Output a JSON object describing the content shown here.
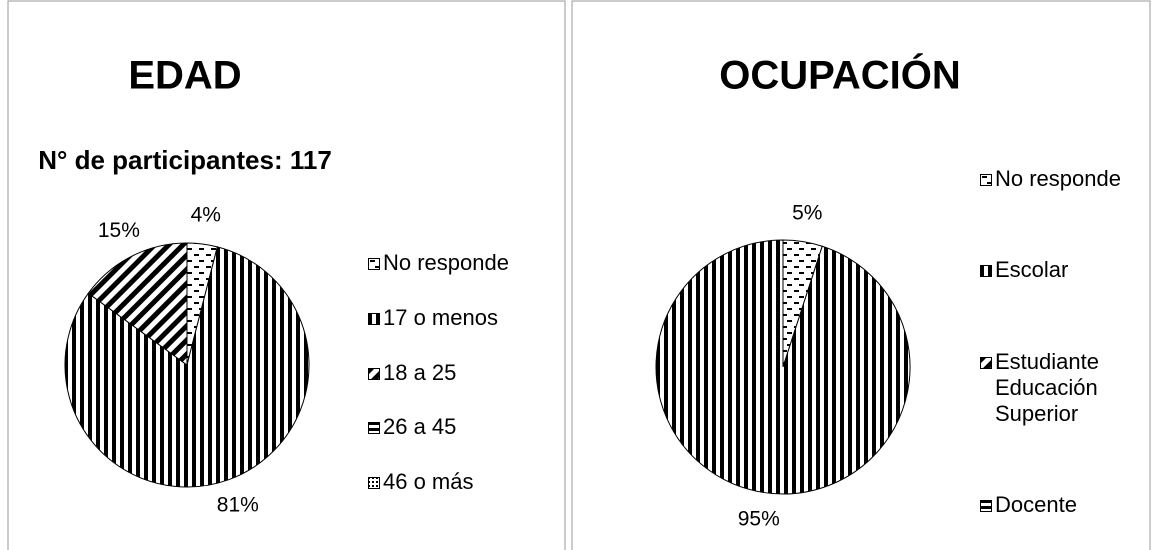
{
  "chart_data": [
    {
      "type": "pie",
      "title": "EDAD",
      "subtitle": "N° de participantes: 117",
      "categories": [
        "No responde",
        "17 o menos",
        "18 a 25",
        "26 a 45",
        "46 o más"
      ],
      "values": [
        4,
        81,
        15,
        0,
        0
      ],
      "value_labels": [
        "4%",
        "81%",
        "15%",
        null,
        null
      ],
      "patterns": [
        "dash",
        "vertical",
        "diagonal",
        "horizontal",
        "dots"
      ],
      "color": "#000000",
      "legend": "right"
    },
    {
      "type": "pie",
      "title": "OCUPACIÓN",
      "categories": [
        "No responde",
        "Escolar",
        "Estudiante Educación Superior",
        "Docente"
      ],
      "values": [
        5,
        95,
        0,
        0
      ],
      "value_labels": [
        "5%",
        "95%",
        null,
        null
      ],
      "patterns": [
        "dash",
        "vertical",
        "diagonal",
        "horizontal"
      ],
      "color": "#000000",
      "legend": "right"
    }
  ]
}
